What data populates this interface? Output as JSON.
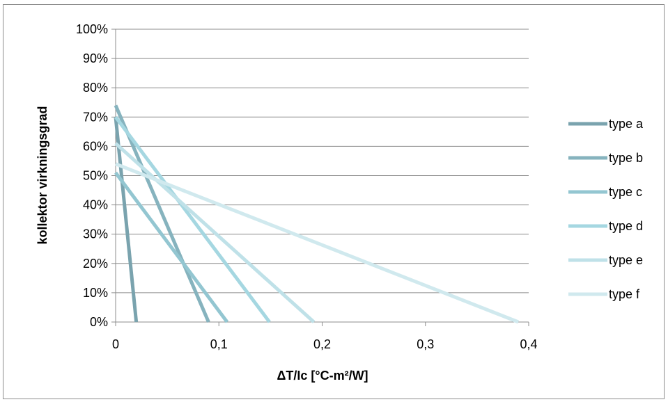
{
  "chart_data": {
    "type": "line",
    "title": "",
    "xlabel": "ΔT/Ic [°C-m²/W]",
    "ylabel": "kollektor virkningsgrad",
    "xlim": [
      0,
      0.4
    ],
    "ylim": [
      0,
      100
    ],
    "x_ticks": [
      0,
      0.1,
      0.2,
      0.3,
      0.4
    ],
    "x_tick_labels": [
      "0",
      "0,1",
      "0,2",
      "0,3",
      "0,4"
    ],
    "y_ticks": [
      0,
      10,
      20,
      30,
      40,
      50,
      60,
      70,
      80,
      90,
      100
    ],
    "y_tick_labels": [
      "0%",
      "10%",
      "20%",
      "30%",
      "40%",
      "50%",
      "60%",
      "70%",
      "80%",
      "90%",
      "100%"
    ],
    "grid": "horizontal",
    "legend": "right",
    "series": [
      {
        "name": "type a",
        "color": "#7aa3ae",
        "points": [
          [
            0,
            70
          ],
          [
            0.02,
            0
          ]
        ]
      },
      {
        "name": "type b",
        "color": "#86b3be",
        "points": [
          [
            0,
            74
          ],
          [
            0.09,
            0
          ]
        ]
      },
      {
        "name": "type c",
        "color": "#93c6d1",
        "points": [
          [
            0,
            51
          ],
          [
            0.108,
            0
          ]
        ]
      },
      {
        "name": "type d",
        "color": "#a5d7e1",
        "points": [
          [
            0,
            70
          ],
          [
            0.149,
            0
          ]
        ]
      },
      {
        "name": "type e",
        "color": "#bfe1e8",
        "points": [
          [
            0,
            61
          ],
          [
            0.192,
            0
          ]
        ]
      },
      {
        "name": "type f",
        "color": "#d0e9ee",
        "points": [
          [
            0,
            54
          ],
          [
            0.39,
            0
          ]
        ]
      }
    ]
  }
}
